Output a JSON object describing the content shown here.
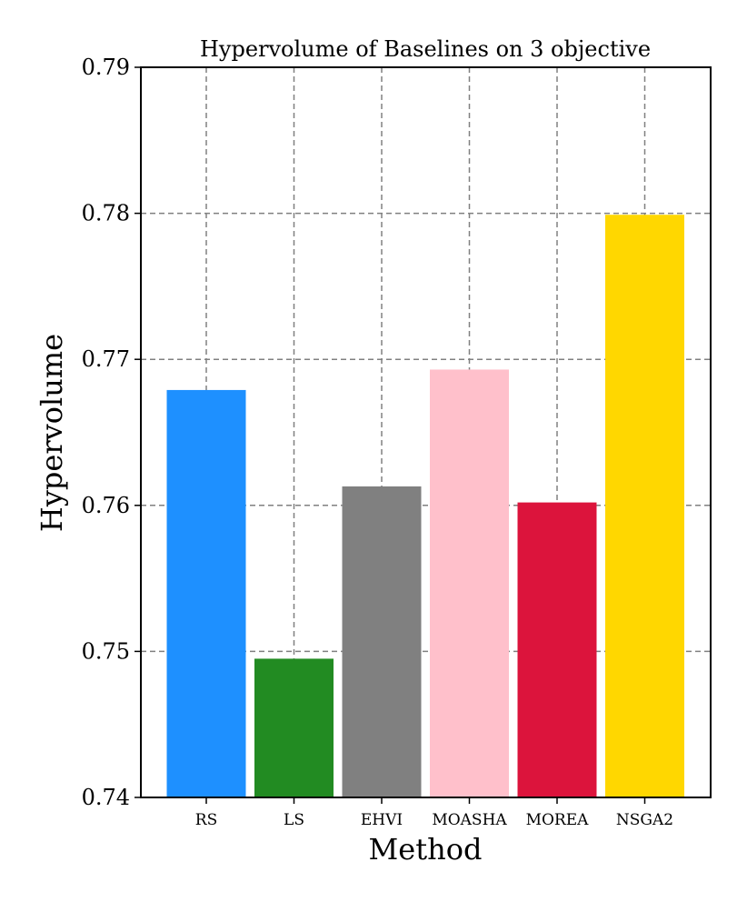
{
  "chart_data": {
    "type": "bar",
    "title": "Hypervolume of Baselines on 3 objective",
    "xlabel": "Method",
    "ylabel": "Hypervolume",
    "categories": [
      "RS",
      "LS",
      "EHVI",
      "MOASHA",
      "MOREA",
      "NSGA2"
    ],
    "values": [
      0.7679,
      0.7495,
      0.7613,
      0.7693,
      0.7602,
      0.7799
    ],
    "colors": [
      "#1e90ff",
      "#228b22",
      "#808080",
      "#ffc0cb",
      "#dc143c",
      "#ffd700"
    ],
    "ylim": [
      0.74,
      0.79
    ],
    "yticks": [
      "0.74",
      "0.75",
      "0.76",
      "0.77",
      "0.78",
      "0.79"
    ],
    "grid": true
  }
}
